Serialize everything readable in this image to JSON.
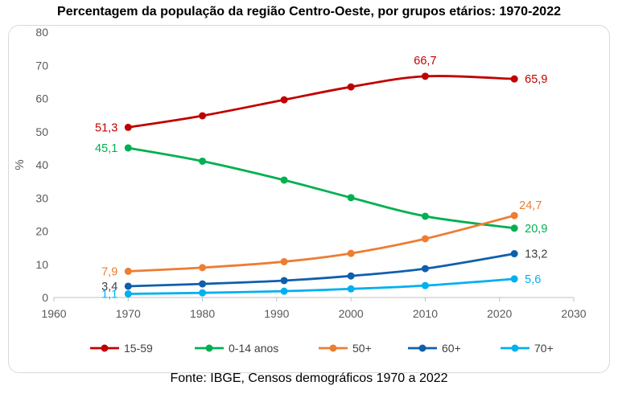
{
  "title": "Percentagem da população da região Centro-Oeste, por grupos etários: 1970-2022",
  "footer": "Fonte: IBGE, Censos demográficos 1970 a 2022",
  "chart_data": {
    "type": "line",
    "title": "Percentagem da população da região Centro-Oeste, por grupos etários: 1970-2022",
    "xlabel": "",
    "ylabel": "%",
    "xlim": [
      1960,
      2030
    ],
    "ylim": [
      0,
      80
    ],
    "x_ticks": [
      1960,
      1970,
      1980,
      1990,
      2000,
      2010,
      2020,
      2030
    ],
    "y_ticks": [
      0,
      10,
      20,
      30,
      40,
      50,
      60,
      70,
      80
    ],
    "x": [
      1970,
      1980,
      1991,
      2000,
      2010,
      2022
    ],
    "grid": false,
    "legend_position": "bottom",
    "series": [
      {
        "name": "15-59",
        "color": "#c00000",
        "values": [
          51.3,
          54.8,
          59.6,
          63.5,
          66.7,
          65.9
        ],
        "labels": [
          {
            "index": 0,
            "text": "51,3",
            "pos": "left"
          },
          {
            "index": 4,
            "text": "66,7",
            "pos": "above"
          },
          {
            "index": 5,
            "text": "65,9",
            "pos": "right"
          }
        ]
      },
      {
        "name": "0-14 anos",
        "color": "#00b050",
        "values": [
          45.1,
          41.1,
          35.4,
          30.1,
          24.5,
          20.9
        ],
        "labels": [
          {
            "index": 0,
            "text": "45,1",
            "pos": "left"
          },
          {
            "index": 5,
            "text": "20,9",
            "pos": "right"
          }
        ]
      },
      {
        "name": "50+",
        "color": "#ed7d31",
        "values": [
          7.9,
          9.0,
          10.8,
          13.3,
          17.7,
          24.7
        ],
        "labels": [
          {
            "index": 0,
            "text": "7,9",
            "pos": "left"
          },
          {
            "index": 5,
            "text": "24,7",
            "pos": "above-right"
          }
        ]
      },
      {
        "name": "60+",
        "color": "#0f5fad",
        "values": [
          3.4,
          4.1,
          5.1,
          6.5,
          8.7,
          13.2
        ],
        "labels": [
          {
            "index": 0,
            "text": "3,4",
            "pos": "left",
            "color": "#404040"
          },
          {
            "index": 5,
            "text": "13,2",
            "pos": "right",
            "color": "#404040"
          }
        ]
      },
      {
        "name": "70+",
        "color": "#00b0f0",
        "values": [
          1.1,
          1.4,
          1.9,
          2.6,
          3.6,
          5.6
        ],
        "labels": [
          {
            "index": 0,
            "text": "1,1",
            "pos": "left"
          },
          {
            "index": 5,
            "text": "5,6",
            "pos": "right"
          }
        ]
      }
    ]
  }
}
